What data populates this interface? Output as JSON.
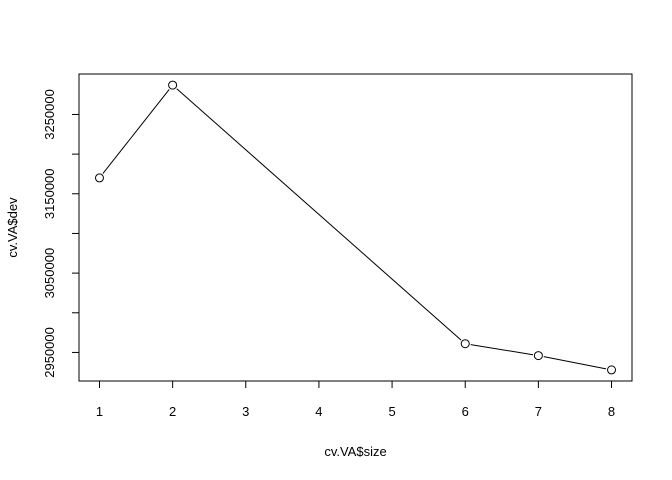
{
  "chart_data": {
    "type": "line",
    "xlabel": "cv.VA$size",
    "ylabel": "cv.VA$dev",
    "x": [
      1,
      2,
      6,
      7,
      8
    ],
    "y": [
      3170000,
      3287000,
      2961000,
      2946000,
      2928000
    ],
    "series": [
      {
        "values": [
          3170000,
          3287000,
          2961000,
          2946000,
          2928000
        ]
      }
    ],
    "xlim": [
      0.72,
      8.28
    ],
    "ylim": [
      2914000,
      3301000
    ],
    "x_ticks": [
      1,
      2,
      3,
      4,
      5,
      6,
      7,
      8
    ],
    "y_ticks": [
      2950000,
      3000000,
      3050000,
      3100000,
      3150000,
      3200000,
      3250000
    ],
    "y_tick_labels": [
      "2950000",
      "",
      "3050000",
      "",
      "3150000",
      "",
      "3250000"
    ],
    "markers": "open-circle",
    "grid": false,
    "legend": "none"
  }
}
